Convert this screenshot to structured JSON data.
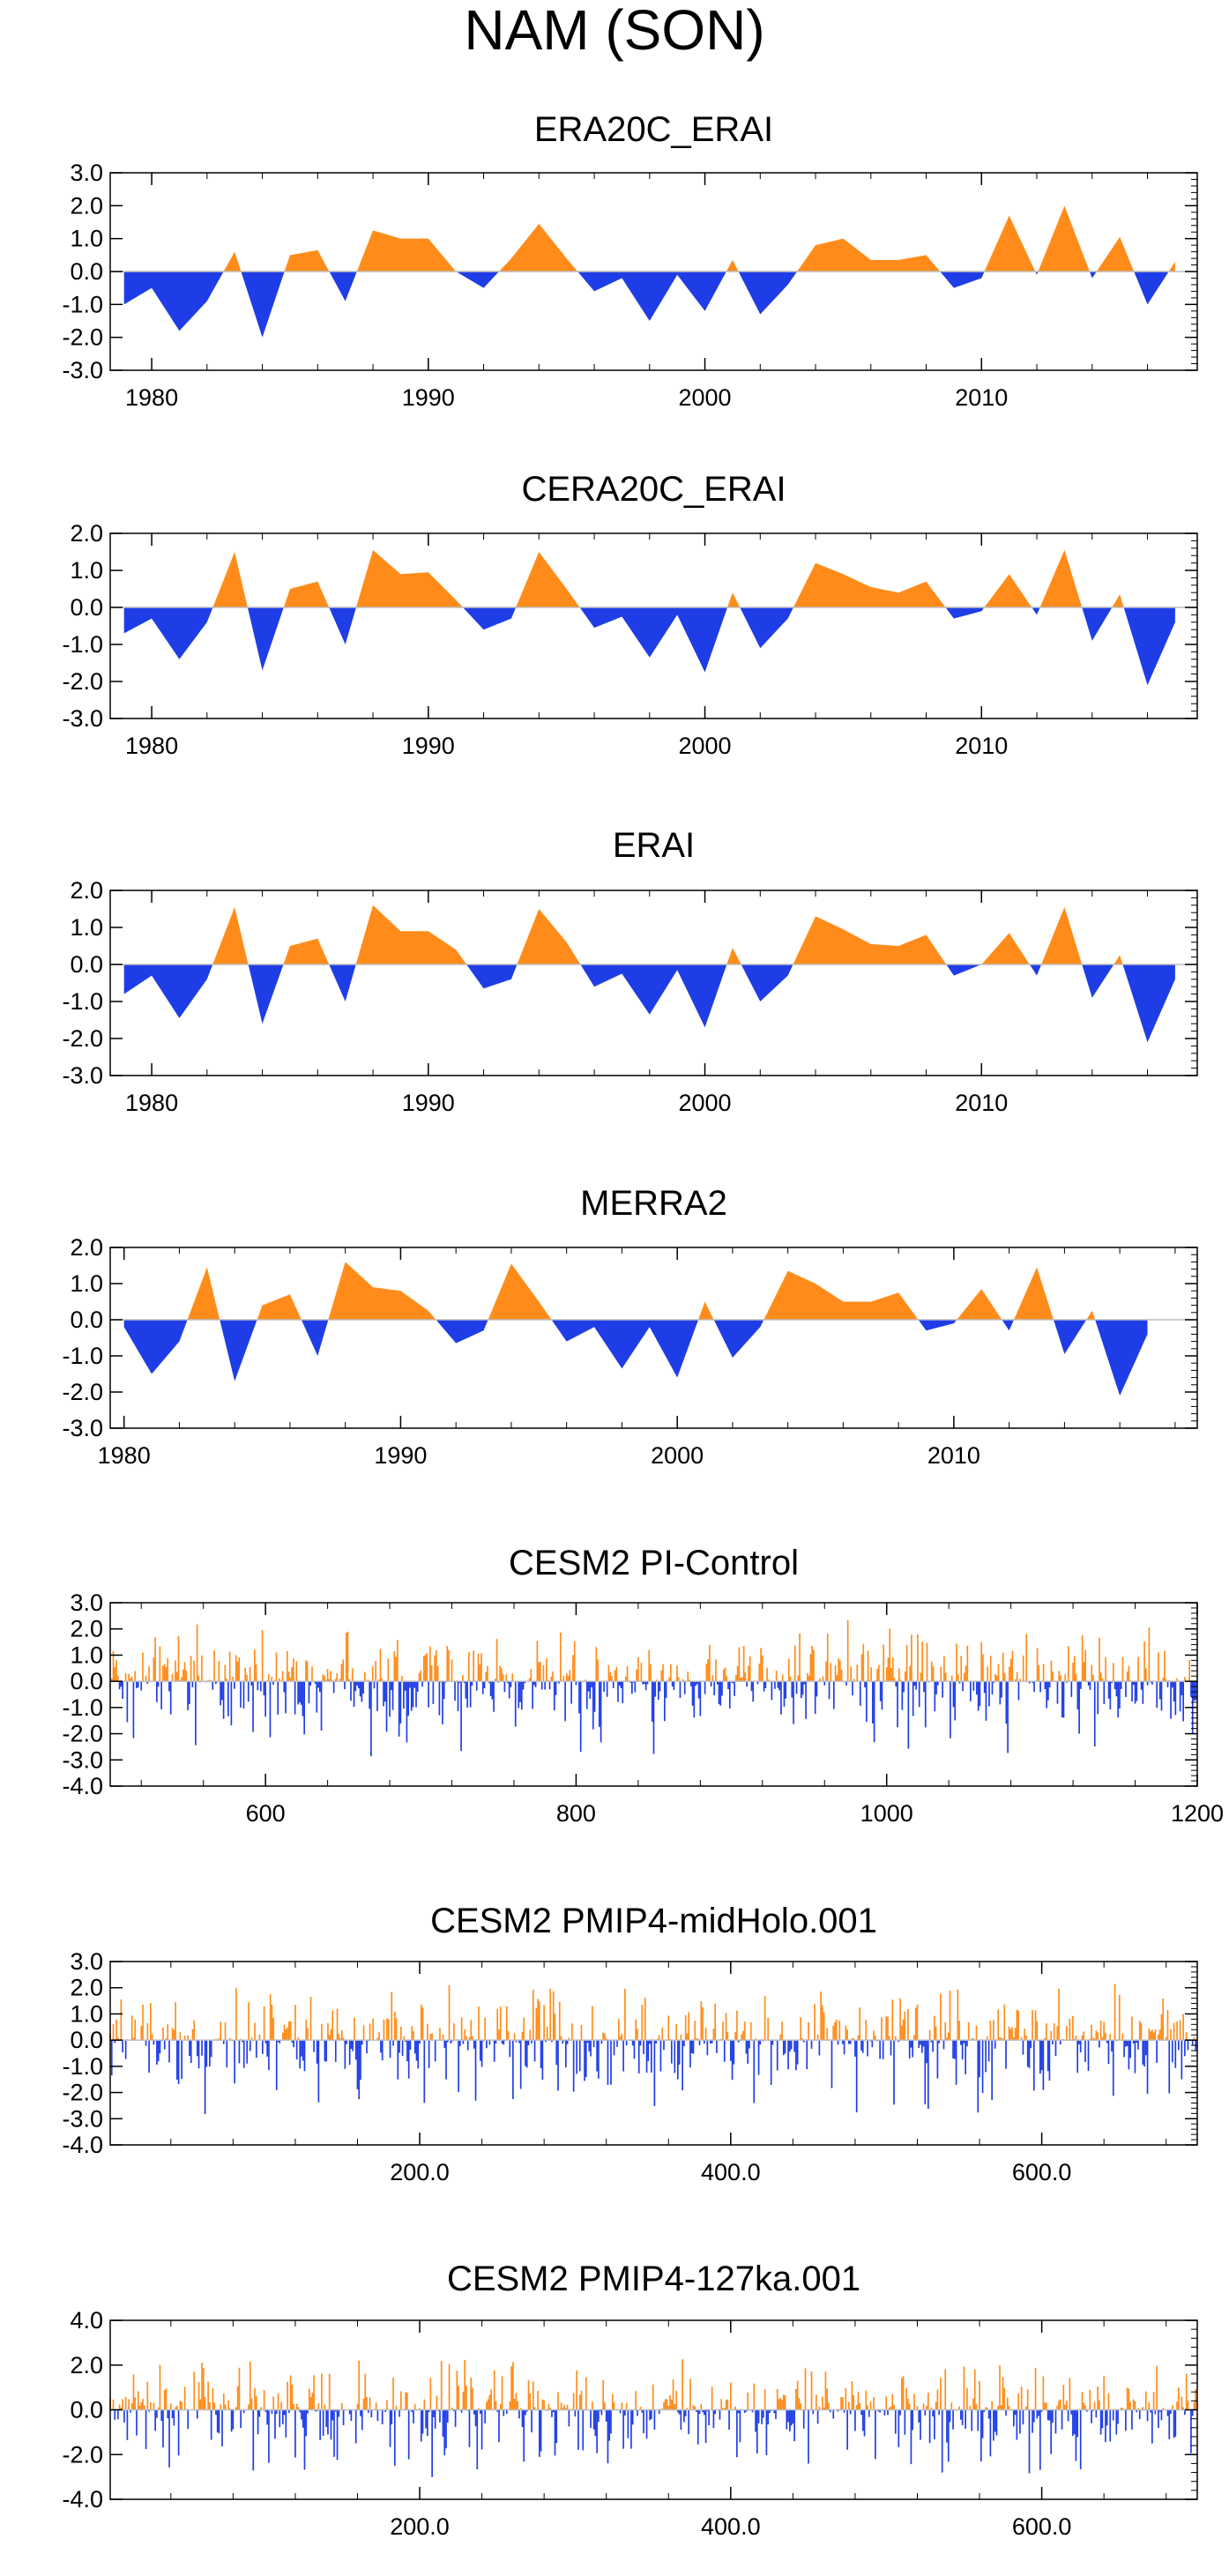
{
  "figure": {
    "title": "NAM (SON)",
    "positive_color": "#ff8c1a",
    "negative_color": "#1f3de6",
    "axis_color": "#000000",
    "zero_line_color": "#bdbdbd"
  },
  "chart_data": [
    {
      "id": "era20c-erai",
      "type": "area",
      "title": "ERA20C_ERAI",
      "xlim": [
        1978.5,
        2017.8
      ],
      "ylim": [
        -3.0,
        3.0
      ],
      "yticks": [
        3.0,
        2.0,
        1.0,
        0.0,
        -1.0,
        -2.0,
        -3.0
      ],
      "ytick_labels": [
        "3.0",
        "2.0",
        "1.0",
        "0.0",
        "-1.0",
        "-2.0",
        "-3.0"
      ],
      "xticks": [
        1980,
        1990,
        2000,
        2010
      ],
      "xtick_labels": [
        "1980",
        "1990",
        "2000",
        "2010"
      ],
      "x": [
        1979,
        1980,
        1981,
        1982,
        1983,
        1984,
        1985,
        1986,
        1987,
        1988,
        1989,
        1990,
        1991,
        1992,
        1993,
        1994,
        1995,
        1996,
        1997,
        1998,
        1999,
        2000,
        2001,
        2002,
        2003,
        2004,
        2005,
        2006,
        2007,
        2008,
        2009,
        2010,
        2011,
        2012,
        2013,
        2014,
        2015,
        2016,
        2017
      ],
      "values": [
        -1.0,
        -0.5,
        -1.8,
        -0.9,
        0.6,
        -2.0,
        0.5,
        0.65,
        -0.9,
        1.25,
        1.0,
        1.0,
        0.0,
        -0.5,
        0.4,
        1.45,
        0.4,
        -0.6,
        -0.2,
        -1.5,
        -0.1,
        -1.2,
        0.35,
        -1.3,
        -0.4,
        0.8,
        1.0,
        0.35,
        0.35,
        0.5,
        -0.5,
        -0.2,
        1.7,
        -0.1,
        2.0,
        -0.2,
        1.05,
        -1.0,
        0.3
      ]
    },
    {
      "id": "cera20c-erai",
      "type": "area",
      "title": "CERA20C_ERAI",
      "xlim": [
        1978.5,
        2017.8
      ],
      "ylim": [
        -3.0,
        2.0
      ],
      "yticks": [
        2.0,
        1.0,
        0.0,
        -1.0,
        -2.0,
        -3.0
      ],
      "ytick_labels": [
        "2.0",
        "1.0",
        "0.0",
        "-1.0",
        "-2.0",
        "-3.0"
      ],
      "xticks": [
        1980,
        1990,
        2000,
        2010
      ],
      "xtick_labels": [
        "1980",
        "1990",
        "2000",
        "2010"
      ],
      "x": [
        1979,
        1980,
        1981,
        1982,
        1983,
        1984,
        1985,
        1986,
        1987,
        1988,
        1989,
        1990,
        1991,
        1992,
        1993,
        1994,
        1995,
        1996,
        1997,
        1998,
        1999,
        2000,
        2001,
        2002,
        2003,
        2004,
        2005,
        2006,
        2007,
        2008,
        2009,
        2010,
        2011,
        2012,
        2013,
        2014,
        2015,
        2016,
        2017
      ],
      "values": [
        -0.7,
        -0.3,
        -1.4,
        -0.4,
        1.5,
        -1.7,
        0.5,
        0.7,
        -1.0,
        1.55,
        0.9,
        0.95,
        0.2,
        -0.6,
        -0.3,
        1.5,
        0.5,
        -0.55,
        -0.25,
        -1.35,
        -0.2,
        -1.75,
        0.4,
        -1.1,
        -0.3,
        1.2,
        0.9,
        0.55,
        0.4,
        0.7,
        -0.3,
        -0.1,
        0.9,
        -0.2,
        1.55,
        -0.9,
        0.35,
        -2.1,
        -0.4
      ]
    },
    {
      "id": "erai",
      "type": "area",
      "title": "ERAI",
      "xlim": [
        1978.5,
        2017.8
      ],
      "ylim": [
        -3.0,
        2.0
      ],
      "yticks": [
        2.0,
        1.0,
        0.0,
        -1.0,
        -2.0,
        -3.0
      ],
      "ytick_labels": [
        "2.0",
        "1.0",
        "0.0",
        "-1.0",
        "-2.0",
        "-3.0"
      ],
      "xticks": [
        1980,
        1990,
        2000,
        2010
      ],
      "xtick_labels": [
        "1980",
        "1990",
        "2000",
        "2010"
      ],
      "x": [
        1979,
        1980,
        1981,
        1982,
        1983,
        1984,
        1985,
        1986,
        1987,
        1988,
        1989,
        1990,
        1991,
        1992,
        1993,
        1994,
        1995,
        1996,
        1997,
        1998,
        1999,
        2000,
        2001,
        2002,
        2003,
        2004,
        2005,
        2006,
        2007,
        2008,
        2009,
        2010,
        2011,
        2012,
        2013,
        2014,
        2015,
        2016,
        2017
      ],
      "values": [
        -0.8,
        -0.3,
        -1.45,
        -0.4,
        1.55,
        -1.6,
        0.5,
        0.7,
        -1.0,
        1.6,
        0.9,
        0.9,
        0.4,
        -0.65,
        -0.4,
        1.5,
        0.6,
        -0.6,
        -0.25,
        -1.35,
        -0.15,
        -1.7,
        0.45,
        -1.0,
        -0.3,
        1.3,
        0.95,
        0.55,
        0.5,
        0.8,
        -0.3,
        0.0,
        0.85,
        -0.3,
        1.55,
        -0.9,
        0.25,
        -2.1,
        -0.4
      ]
    },
    {
      "id": "merra2",
      "type": "area",
      "title": "MERRA2",
      "xlim": [
        1979.5,
        2018.8
      ],
      "ylim": [
        -3.0,
        2.0
      ],
      "yticks": [
        2.0,
        1.0,
        0.0,
        -1.0,
        -2.0,
        -3.0
      ],
      "ytick_labels": [
        "2.0",
        "1.0",
        "0.0",
        "-1.0",
        "-2.0",
        "-3.0"
      ],
      "xticks": [
        1980,
        1990,
        2000,
        2010
      ],
      "xtick_labels": [
        "1980",
        "1990",
        "2000",
        "2010"
      ],
      "x": [
        1980,
        1981,
        1982,
        1983,
        1984,
        1985,
        1986,
        1987,
        1988,
        1989,
        1990,
        1991,
        1992,
        1993,
        1994,
        1995,
        1996,
        1997,
        1998,
        1999,
        2000,
        2001,
        2002,
        2003,
        2004,
        2005,
        2006,
        2007,
        2008,
        2009,
        2010,
        2011,
        2012,
        2013,
        2014,
        2015,
        2016,
        2017
      ],
      "values": [
        -0.2,
        -1.5,
        -0.6,
        1.45,
        -1.7,
        0.4,
        0.7,
        -1.0,
        1.6,
        0.9,
        0.8,
        0.25,
        -0.65,
        -0.3,
        1.55,
        0.5,
        -0.6,
        -0.2,
        -1.35,
        -0.2,
        -1.6,
        0.5,
        -1.05,
        -0.2,
        1.35,
        1.0,
        0.5,
        0.5,
        0.75,
        -0.3,
        -0.1,
        0.85,
        -0.3,
        1.45,
        -0.95,
        0.25,
        -2.1,
        -0.4
      ]
    },
    {
      "id": "pi-control",
      "type": "bar",
      "title": "CESM2 PI-Control",
      "xlim": [
        500,
        1200
      ],
      "ylim": [
        -4.0,
        3.0
      ],
      "yticks": [
        3.0,
        2.0,
        1.0,
        0.0,
        -1.0,
        -2.0,
        -3.0,
        -4.0
      ],
      "ytick_labels": [
        "3.0",
        "2.0",
        "1.0",
        "0.0",
        "-1.0",
        "-2.0",
        "-3.0",
        "-4.0"
      ],
      "xticks": [
        600,
        800,
        1000,
        1200
      ],
      "xtick_labels": [
        "600",
        "800",
        "1000",
        "1200"
      ],
      "x_start": 501,
      "n_years": 699,
      "seed": 11,
      "pos_max": 2.5,
      "neg_max": 3.0
    },
    {
      "id": "midholo",
      "type": "bar",
      "title": "CESM2 PMIP4-midHolo.001",
      "xlim": [
        1,
        700
      ],
      "ylim": [
        -4.0,
        3.0
      ],
      "yticks": [
        3.0,
        2.0,
        1.0,
        0.0,
        -1.0,
        -2.0,
        -3.0,
        -4.0
      ],
      "ytick_labels": [
        "3.0",
        "2.0",
        "1.0",
        "0.0",
        "-1.0",
        "-2.0",
        "-3.0",
        "-4.0"
      ],
      "xticks": [
        200,
        400,
        600
      ],
      "xtick_labels": [
        "200.0",
        "400.0",
        "600.0"
      ],
      "x_start": 1,
      "n_years": 699,
      "seed": 23,
      "pos_max": 2.5,
      "neg_max": 3.0
    },
    {
      "id": "127ka",
      "type": "bar",
      "title": "CESM2 PMIP4-127ka.001",
      "xlim": [
        1,
        700
      ],
      "ylim": [
        -4.0,
        4.0
      ],
      "yticks": [
        4.0,
        2.0,
        0.0,
        -2.0,
        -4.0
      ],
      "ytick_labels": [
        "4.0",
        "2.0",
        "0.0",
        "-2.0",
        "-4.0"
      ],
      "xticks": [
        200,
        400,
        600
      ],
      "xtick_labels": [
        "200.0",
        "400.0",
        "600.0"
      ],
      "x_start": 1,
      "n_years": 699,
      "seed": 37,
      "pos_max": 2.8,
      "neg_max": 3.3
    }
  ]
}
